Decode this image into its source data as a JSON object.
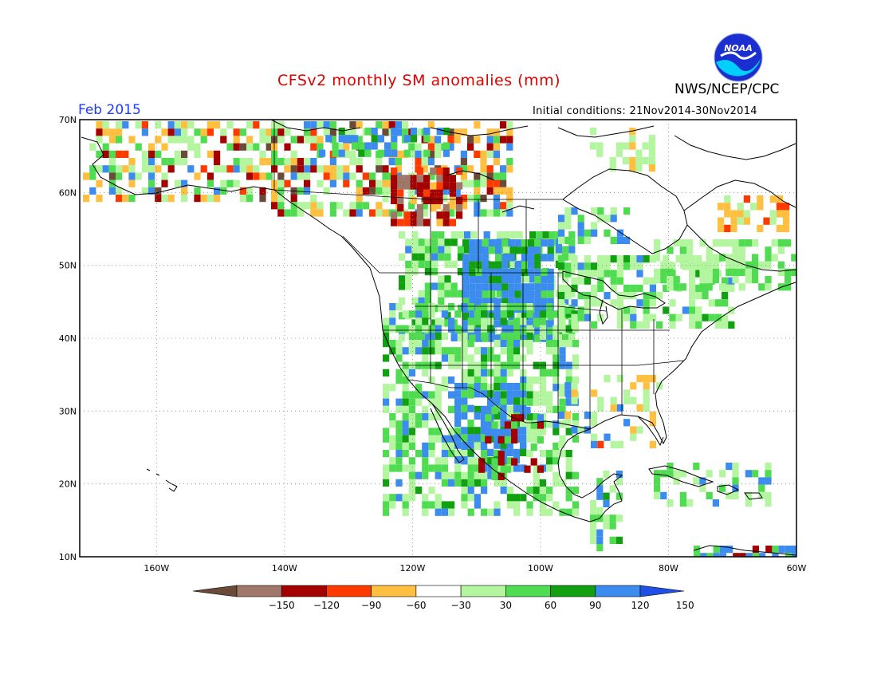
{
  "header": {
    "title": "CFSv2 monthly SM anomalies (mm)",
    "organization": "NWS/NCEP/CPC",
    "logo_text": "NOAA",
    "period": "Feb 2015",
    "initial_conditions": "Initial conditions: 21Nov2014-30Nov2014"
  },
  "map": {
    "lon_range": [
      -172,
      -60
    ],
    "lat_range": [
      10,
      70
    ],
    "lat_labels": [
      "70N",
      "60N",
      "50N",
      "40N",
      "30N",
      "20N",
      "10N"
    ],
    "lon_labels": [
      "160W",
      "140W",
      "120W",
      "100W",
      "80W",
      "60W"
    ],
    "grid": "dotted"
  },
  "colorbar": {
    "ticks": [
      "-150",
      "-120",
      "-90",
      "-60",
      "-30",
      "30",
      "60",
      "90",
      "120",
      "150"
    ],
    "colors": [
      "#6b4a3a",
      "#a0786a",
      "#a50000",
      "#ff3a00",
      "#ffbf40",
      "#ffffff",
      "#b4f5a0",
      "#50dc50",
      "#10a010",
      "#3c8cf0",
      "#1e50e6"
    ]
  }
}
